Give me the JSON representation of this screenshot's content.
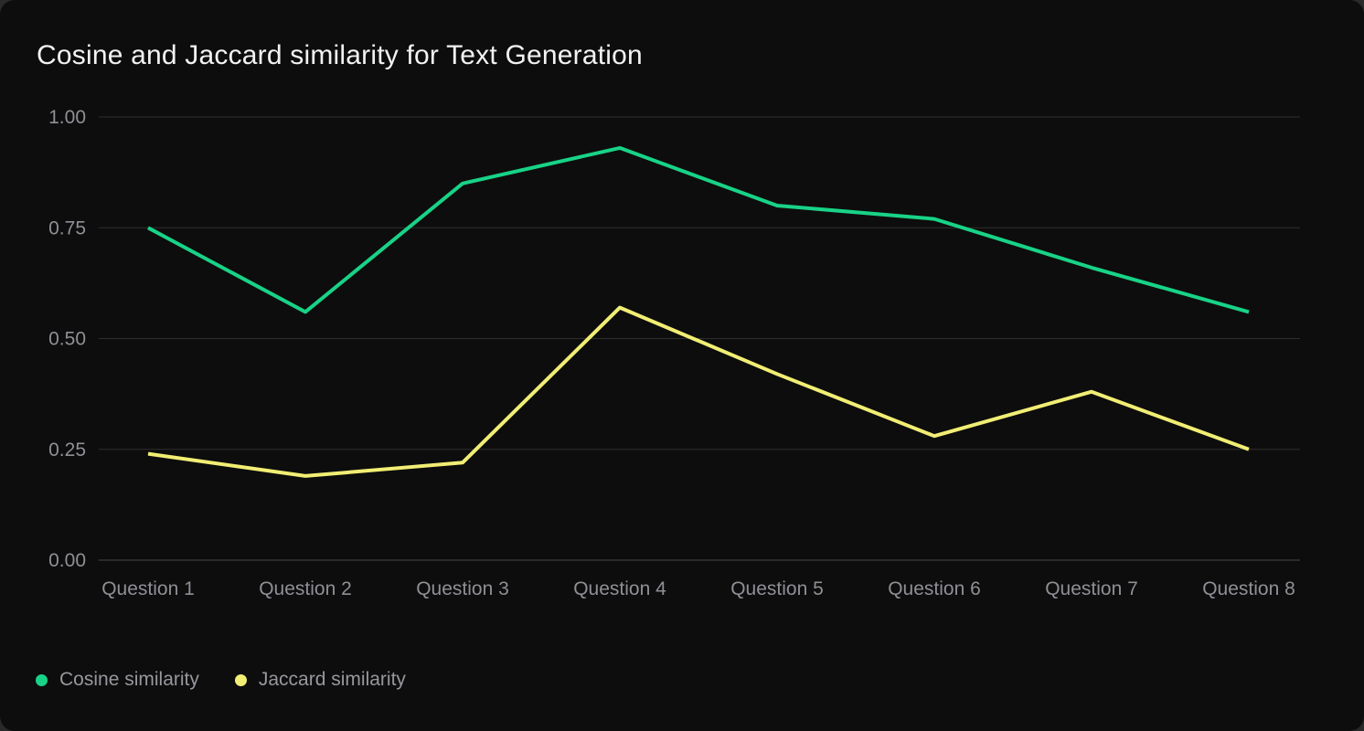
{
  "title": "Cosine and Jaccard similarity for Text Generation",
  "chart_data": {
    "type": "line",
    "categories": [
      "Question 1",
      "Question 2",
      "Question 3",
      "Question 4",
      "Question 5",
      "Question 6",
      "Question 7",
      "Question 8"
    ],
    "series": [
      {
        "name": "Cosine similarity",
        "color": "#18d387",
        "values": [
          0.75,
          0.56,
          0.85,
          0.93,
          0.8,
          0.77,
          0.66,
          0.56
        ]
      },
      {
        "name": "Jaccard similarity",
        "color": "#f1ee74",
        "values": [
          0.24,
          0.19,
          0.22,
          0.57,
          0.42,
          0.28,
          0.38,
          0.25
        ]
      }
    ],
    "ylim": [
      0,
      1
    ],
    "ytick_labels": [
      "1.00",
      "0.75",
      "0.50",
      "0.25",
      "0.00"
    ],
    "ytick_values": [
      1.0,
      0.75,
      0.5,
      0.25,
      0.0
    ],
    "grid": true,
    "legend_position": "bottom-left",
    "title": "Cosine and Jaccard similarity for Text Generation",
    "xlabel": "",
    "ylabel": ""
  },
  "legend": {
    "items": [
      {
        "label": "Cosine similarity",
        "color": "#18d387"
      },
      {
        "label": "Jaccard similarity",
        "color": "#f1ee74"
      }
    ]
  },
  "colors": {
    "card_background": "#0d0d0d",
    "page_background": "#2a2a2a",
    "title_text": "#f2f2f2",
    "axis_text": "#8f8f96",
    "legend_text": "#97979d",
    "gridline": "#2e2e2e",
    "axis_line": "#474747"
  }
}
